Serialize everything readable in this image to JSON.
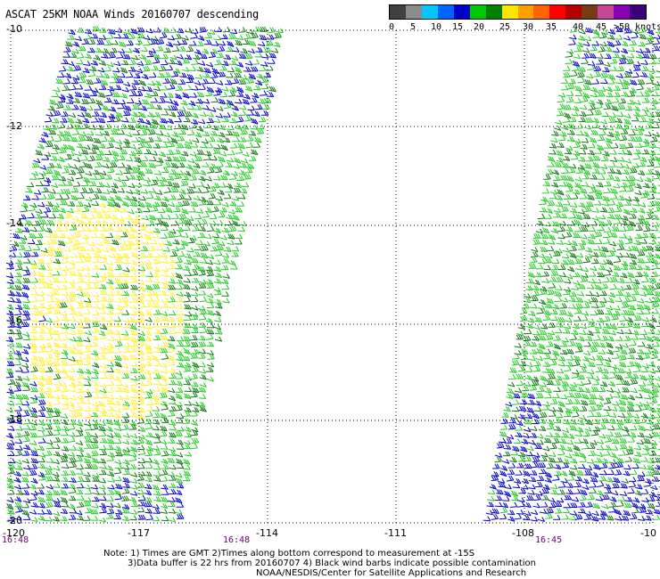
{
  "title": "ASCAT 25KM NOAA Winds 20160707 descending",
  "legend": {
    "colors": [
      "#404040",
      "#8c8c8c",
      "#00c8ff",
      "#0064ff",
      "#0000c8",
      "#00c800",
      "#008000",
      "#ffe600",
      "#ffa000",
      "#ff6400",
      "#ff0000",
      "#b40000",
      "#783c14",
      "#c84696",
      "#8c00b4",
      "#3c0078"
    ],
    "labels": [
      "0",
      "5",
      "10",
      "15",
      "20",
      "25",
      "30",
      "35",
      "40",
      "45",
      ">50 knots"
    ]
  },
  "axes": {
    "lon_labels": [
      "-120",
      "-117",
      "-114",
      "-111",
      "-108",
      "-10"
    ],
    "lat_labels": [
      "-10",
      "-12",
      "-14",
      "-16",
      "-18",
      "-20"
    ]
  },
  "pass_times": [
    "16:48",
    "16:48",
    "16:45"
  ],
  "notes": [
    "Note: 1) Times are GMT 2)Times along bottom correspond to measurement at -15S",
    "3)Data buffer is 22 hrs from 20160707 4) Black wind barbs indicate possible contamination",
    "NOAA/NESDIS/Center for Satellite Applications and Research"
  ],
  "wind_colors": {
    "blue": "#0000cc",
    "green": "#22cc22",
    "darkgreen": "#117711",
    "yellow": "#ffee33"
  }
}
